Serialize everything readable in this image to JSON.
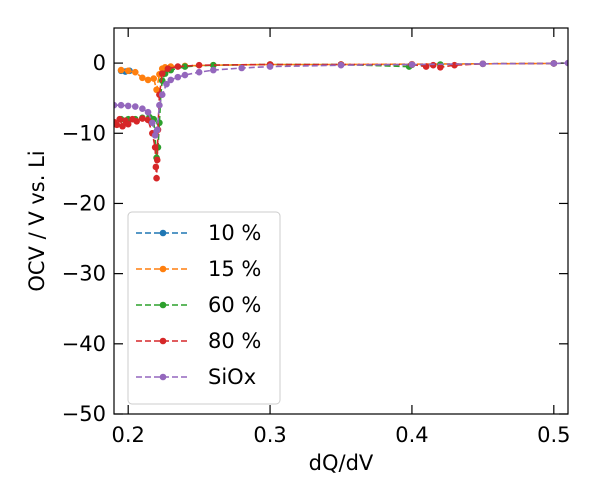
{
  "chart_data": {
    "type": "line",
    "xlabel": "dQ/dV",
    "ylabel": "OCV / V vs. Li",
    "xlim": [
      0.19,
      0.51
    ],
    "ylim": [
      -50,
      5
    ],
    "xticks": [
      0.2,
      0.3,
      0.4,
      0.5
    ],
    "xtick_labels": [
      "0.2",
      "0.3",
      "0.4",
      "0.5"
    ],
    "yticks": [
      0,
      -10,
      -20,
      -30,
      -40,
      -50
    ],
    "ytick_labels": [
      "0",
      "−10",
      "−20",
      "−30",
      "−40",
      "−50"
    ],
    "grid": false,
    "legend_position": "lower-left",
    "series": [
      {
        "name": "10 %",
        "color": "#1f77b4",
        "x": [
          0.195,
          0.198,
          0.201
        ],
        "y": [
          -1.1,
          -1.2,
          -1.1
        ]
      },
      {
        "name": "15 %",
        "color": "#ff7f0e",
        "x": [
          0.195,
          0.2,
          0.205,
          0.21,
          0.214,
          0.218,
          0.22,
          0.222,
          0.224,
          0.226,
          0.23,
          0.24,
          0.26,
          0.3,
          0.35,
          0.4,
          0.45,
          0.5
        ],
        "y": [
          -1.0,
          -1.1,
          -1.3,
          -2.1,
          -2.4,
          -2.2,
          -3.8,
          -1.6,
          -0.8,
          -0.6,
          -0.5,
          -0.4,
          -0.3,
          -0.2,
          -0.2,
          -0.15,
          -0.1,
          -0.05
        ]
      },
      {
        "name": "60 %",
        "color": "#2ca02c",
        "x": [
          0.195,
          0.2,
          0.205,
          0.21,
          0.215,
          0.218,
          0.22,
          0.221,
          0.222,
          0.223,
          0.224,
          0.226,
          0.23,
          0.24,
          0.26,
          0.3,
          0.35,
          0.398,
          0.4,
          0.42,
          0.45,
          0.5
        ],
        "y": [
          -8.0,
          -8.0,
          -8.0,
          -7.8,
          -7.7,
          -8.0,
          -13.5,
          -12.0,
          -8.5,
          -4.5,
          -2.5,
          -1.5,
          -1.0,
          -0.5,
          -0.3,
          -0.2,
          -0.2,
          -0.5,
          -0.25,
          -0.2,
          -0.1,
          -0.05
        ]
      },
      {
        "name": "80 %",
        "color": "#d62728",
        "x": [
          0.19,
          0.192,
          0.194,
          0.196,
          0.198,
          0.2,
          0.203,
          0.206,
          0.21,
          0.214,
          0.217,
          0.219,
          0.2195,
          0.22,
          0.2205,
          0.221,
          0.222,
          0.224,
          0.228,
          0.235,
          0.25,
          0.3,
          0.35,
          0.4,
          0.41,
          0.415,
          0.42,
          0.43,
          0.45,
          0.5
        ],
        "y": [
          -8.4,
          -8.8,
          -8.0,
          -9.0,
          -8.2,
          -8.7,
          -8.0,
          -8.3,
          -7.9,
          -8.1,
          -10.0,
          -12.0,
          -14.8,
          -16.4,
          -13.8,
          -9.5,
          -4.5,
          -1.5,
          -0.8,
          -0.5,
          -0.3,
          -0.2,
          -0.2,
          -0.2,
          -0.5,
          -0.3,
          -0.6,
          -0.3,
          -0.1,
          -0.05
        ]
      },
      {
        "name": "SiOx",
        "color": "#9467bd",
        "x": [
          0.19,
          0.195,
          0.2,
          0.205,
          0.21,
          0.214,
          0.217,
          0.219,
          0.2205,
          0.222,
          0.224,
          0.227,
          0.23,
          0.235,
          0.24,
          0.25,
          0.26,
          0.28,
          0.3,
          0.35,
          0.4,
          0.45,
          0.5,
          0.51
        ],
        "y": [
          -6.0,
          -6.0,
          -6.1,
          -6.2,
          -6.5,
          -7.0,
          -8.5,
          -10.3,
          -9.5,
          -6.0,
          -4.5,
          -3.0,
          -2.4,
          -2.0,
          -1.7,
          -1.3,
          -1.0,
          -0.7,
          -0.5,
          -0.3,
          -0.2,
          -0.1,
          -0.05,
          0.0
        ]
      }
    ]
  }
}
